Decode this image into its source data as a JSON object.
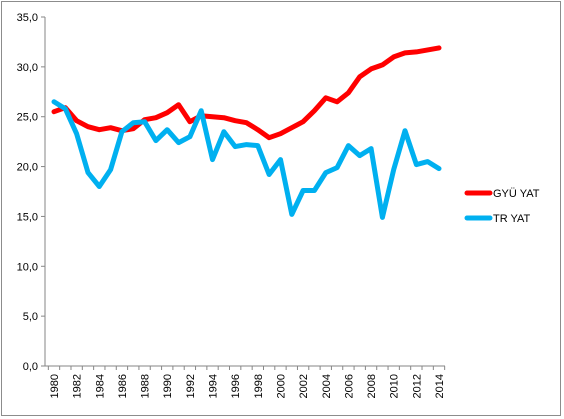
{
  "chart_data": {
    "type": "line",
    "title": "",
    "xlabel": "",
    "ylabel": "",
    "x": [
      1980,
      1981,
      1982,
      1983,
      1984,
      1985,
      1986,
      1987,
      1988,
      1989,
      1990,
      1991,
      1992,
      1993,
      1994,
      1995,
      1996,
      1997,
      1998,
      1999,
      2000,
      2001,
      2002,
      2003,
      2004,
      2005,
      2006,
      2007,
      2008,
      2009,
      2010,
      2011,
      2012,
      2013,
      2014
    ],
    "x_tick_labels": [
      "1980",
      "1982",
      "1984",
      "1986",
      "1988",
      "1990",
      "1992",
      "1994",
      "1996",
      "1998",
      "2000",
      "2002",
      "2004",
      "2006",
      "2008",
      "2010",
      "2012",
      "2014"
    ],
    "y_tick_labels": [
      "0,0",
      "5,0",
      "10,0",
      "15,0",
      "20,0",
      "25,0",
      "30,0",
      "35,0"
    ],
    "ylim": [
      0,
      35
    ],
    "grid": "horizontal-none",
    "legend_position": "right",
    "series": [
      {
        "name": "GYÜ YAT",
        "color": "#ff0000",
        "values": [
          25.5,
          25.9,
          24.6,
          24.0,
          23.7,
          23.9,
          23.6,
          23.8,
          24.7,
          24.9,
          25.4,
          26.2,
          24.5,
          25.1,
          25.0,
          24.9,
          24.6,
          24.4,
          23.7,
          22.9,
          23.3,
          23.9,
          24.5,
          25.6,
          26.9,
          26.5,
          27.4,
          29.0,
          29.8,
          30.2,
          31.0,
          31.4,
          31.5,
          31.7,
          31.9
        ]
      },
      {
        "name": "TR YAT",
        "color": "#00b0f0",
        "values": [
          26.5,
          25.8,
          23.3,
          19.4,
          18.0,
          19.7,
          23.5,
          24.4,
          24.5,
          22.6,
          23.7,
          22.4,
          23.0,
          25.6,
          20.7,
          23.5,
          22.0,
          22.2,
          22.1,
          19.2,
          20.7,
          15.2,
          17.6,
          17.6,
          19.4,
          19.9,
          22.1,
          21.1,
          21.8,
          14.9,
          19.7,
          23.6,
          20.2,
          20.5,
          19.8
        ]
      }
    ]
  }
}
